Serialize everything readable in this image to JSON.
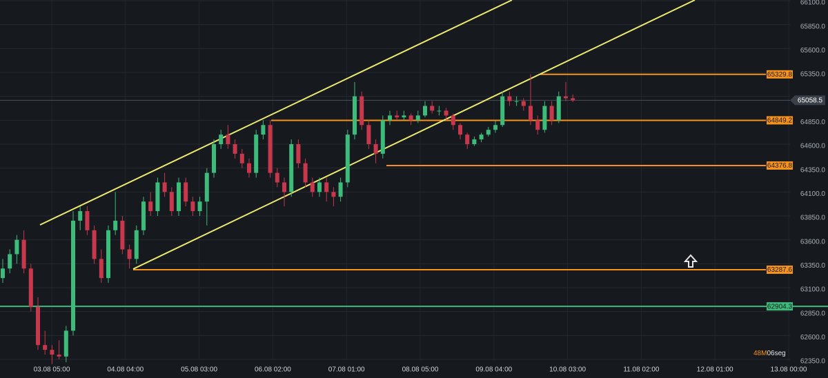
{
  "chart_data": {
    "type": "candlestick",
    "up_color": "#3dbb7a",
    "down_color": "#c8384c",
    "ylim": [
      62350,
      66100
    ],
    "yticks": [
      {
        "value": 62350,
        "label": "62350.0"
      },
      {
        "value": 62600,
        "label": "62600.0"
      },
      {
        "value": 62850,
        "label": "62850.0"
      },
      {
        "value": 63100,
        "label": "63100.0"
      },
      {
        "value": 63350,
        "label": "63350.0"
      },
      {
        "value": 63600,
        "label": "63600.0"
      },
      {
        "value": 63850,
        "label": "63850.0"
      },
      {
        "value": 64100,
        "label": "64100.0"
      },
      {
        "value": 64350,
        "label": "64350.0"
      },
      {
        "value": 64600,
        "label": "64600.0"
      },
      {
        "value": 64850,
        "label": "64850.0"
      },
      {
        "value": 65100,
        "label": "65100.0"
      },
      {
        "value": 65350,
        "label": "65350.0"
      },
      {
        "value": 65600,
        "label": "65600.0"
      },
      {
        "value": 65850,
        "label": "65850.0"
      },
      {
        "value": 66100,
        "label": "66100.0"
      }
    ],
    "xticks": [
      "03.08 05:00",
      "04.08 04:00",
      "05.08 03:00",
      "06.08 02:00",
      "07.08 01:00",
      "08.08 05:00",
      "09.08 04:00",
      "10.08 03:00",
      "11.08 02:00",
      "12.08 01:00",
      "13.08 00:00"
    ],
    "grid": true,
    "ohlc": [
      [
        63200,
        63400,
        63150,
        63300
      ],
      [
        63300,
        63500,
        63250,
        63450
      ],
      [
        63450,
        63650,
        63350,
        63600
      ],
      [
        63600,
        63700,
        63250,
        63300
      ],
      [
        63300,
        63350,
        62850,
        62900
      ],
      [
        62900,
        63000,
        62450,
        62500
      ],
      [
        62500,
        62650,
        62400,
        62450
      ],
      [
        62450,
        62500,
        62300,
        62400
      ],
      [
        62400,
        62550,
        62350,
        62380
      ],
      [
        62380,
        62700,
        62320,
        62650
      ],
      [
        62650,
        63900,
        62600,
        63800
      ],
      [
        63800,
        63950,
        63700,
        63900
      ],
      [
        63900,
        63950,
        63650,
        63700
      ],
      [
        63700,
        63750,
        63350,
        63400
      ],
      [
        63400,
        63500,
        63150,
        63200
      ],
      [
        63200,
        63750,
        63150,
        63700
      ],
      [
        63700,
        64100,
        63650,
        63800
      ],
      [
        63800,
        63850,
        63450,
        63500
      ],
      [
        63500,
        63550,
        63300,
        63400
      ],
      [
        63400,
        63750,
        63350,
        63700
      ],
      [
        63700,
        64050,
        63650,
        64000
      ],
      [
        64000,
        64100,
        63850,
        63900
      ],
      [
        63900,
        64250,
        63850,
        64200
      ],
      [
        64200,
        64300,
        64050,
        64100
      ],
      [
        64100,
        64150,
        63850,
        63900
      ],
      [
        63900,
        64250,
        63850,
        64200
      ],
      [
        64200,
        64250,
        63950,
        64000
      ],
      [
        64000,
        64050,
        63850,
        63900
      ],
      [
        63900,
        64050,
        63850,
        64000
      ],
      [
        64000,
        64350,
        63750,
        64300
      ],
      [
        64300,
        64650,
        64250,
        64600
      ],
      [
        64600,
        64750,
        64550,
        64700
      ],
      [
        64700,
        64800,
        64550,
        64600
      ],
      [
        64600,
        64650,
        64450,
        64500
      ],
      [
        64500,
        64550,
        64350,
        64400
      ],
      [
        64400,
        64450,
        64250,
        64300
      ],
      [
        64300,
        64750,
        64250,
        64700
      ],
      [
        64700,
        64850,
        64650,
        64800
      ],
      [
        64800,
        64850,
        64250,
        64300
      ],
      [
        64300,
        64350,
        64150,
        64200
      ],
      [
        64200,
        64250,
        63950,
        64100
      ],
      [
        64100,
        64650,
        64050,
        64600
      ],
      [
        64600,
        64650,
        64350,
        64400
      ],
      [
        64400,
        64450,
        64150,
        64200
      ],
      [
        64200,
        64250,
        64050,
        64100
      ],
      [
        64100,
        64250,
        64050,
        64200
      ],
      [
        64200,
        64250,
        64000,
        64100
      ],
      [
        64100,
        64150,
        63950,
        64050
      ],
      [
        64050,
        64250,
        64000,
        64200
      ],
      [
        64200,
        64750,
        64150,
        64700
      ],
      [
        64700,
        65250,
        64650,
        65100
      ],
      [
        65100,
        65150,
        64750,
        64800
      ],
      [
        64800,
        64850,
        64550,
        64600
      ],
      [
        64600,
        64650,
        64400,
        64500
      ],
      [
        64500,
        64900,
        64450,
        64850
      ],
      [
        64850,
        64950,
        64800,
        64900
      ],
      [
        64900,
        64950,
        64850,
        64880
      ],
      [
        64880,
        64950,
        64850,
        64900
      ],
      [
        64900,
        64920,
        64800,
        64850
      ],
      [
        64850,
        64950,
        64820,
        64900
      ],
      [
        64900,
        65050,
        64880,
        65000
      ],
      [
        65000,
        65050,
        64920,
        64950
      ],
      [
        64950,
        65000,
        64900,
        64950
      ],
      [
        64950,
        64980,
        64850,
        64900
      ],
      [
        64900,
        64920,
        64750,
        64800
      ],
      [
        64800,
        64820,
        64650,
        64700
      ],
      [
        64700,
        64720,
        64550,
        64600
      ],
      [
        64600,
        64680,
        64580,
        64650
      ],
      [
        64650,
        64720,
        64620,
        64700
      ],
      [
        64700,
        64780,
        64680,
        64750
      ],
      [
        64750,
        64850,
        64720,
        64800
      ],
      [
        64800,
        65150,
        64780,
        65100
      ],
      [
        65100,
        65150,
        65000,
        65050
      ],
      [
        65050,
        65100,
        65000,
        65050
      ],
      [
        65050,
        65080,
        64950,
        65000
      ],
      [
        65000,
        65330,
        64800,
        64850
      ],
      [
        64850,
        64900,
        64700,
        64750
      ],
      [
        64750,
        65050,
        64720,
        65000
      ],
      [
        65000,
        65050,
        64800,
        64850
      ],
      [
        64850,
        65150,
        64820,
        65100
      ],
      [
        65100,
        65250,
        65050,
        65080
      ],
      [
        65080,
        65120,
        65040,
        65058.5
      ]
    ],
    "levels": [
      {
        "value": 65329.8,
        "color": "#f7931a"
      },
      {
        "value": 64849.2,
        "color": "#f7931a"
      },
      {
        "value": 64376.8,
        "color": "#f7931a"
      },
      {
        "value": 63287.6,
        "color": "#f7931a"
      },
      {
        "value": 62904.3,
        "color": "#3dbb7a"
      }
    ],
    "current_price": 65058.5,
    "timer": {
      "minutes": "48M",
      "seconds": "06seg"
    }
  }
}
